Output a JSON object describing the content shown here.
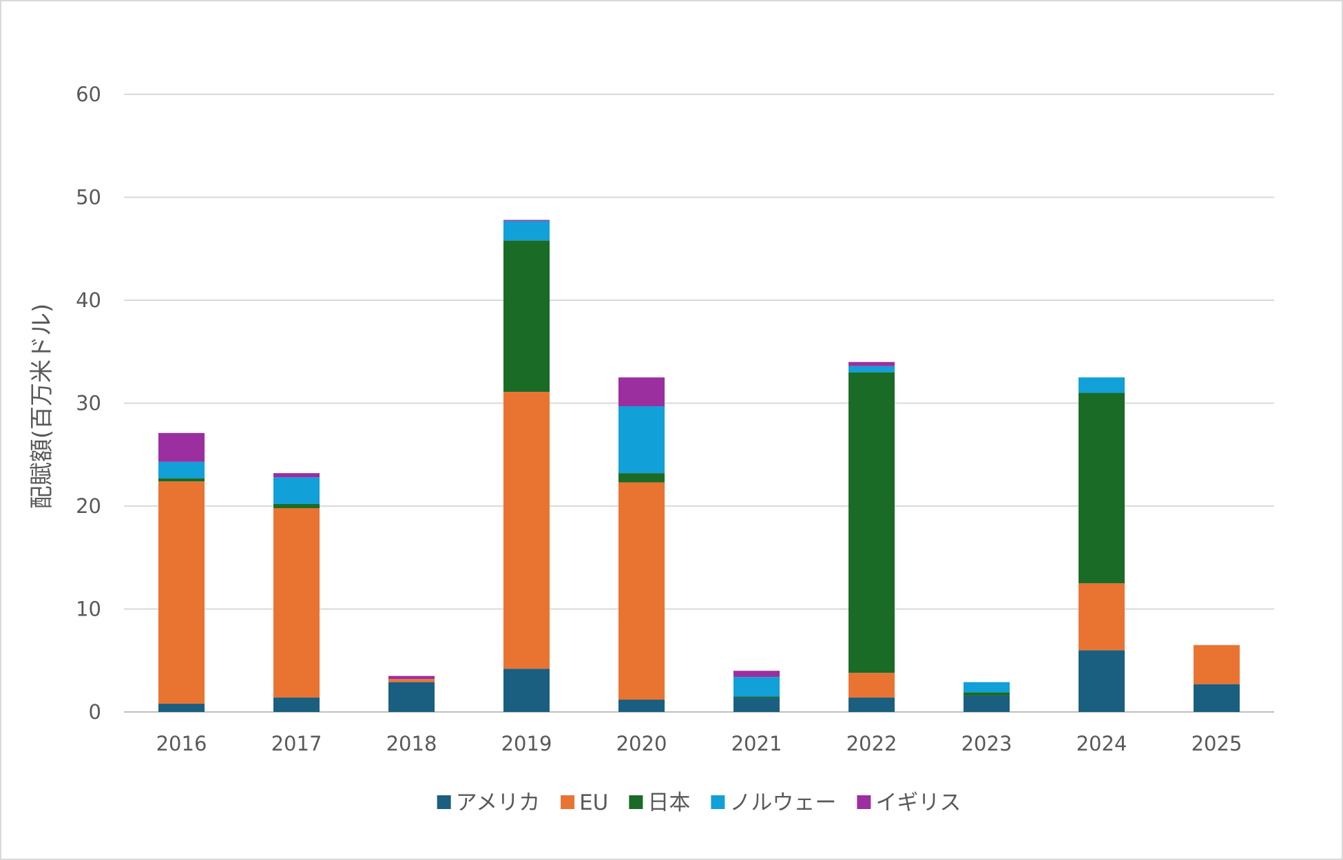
{
  "chart_data": {
    "type": "bar",
    "stacked": true,
    "title": "",
    "xlabel": "",
    "ylabel": "配賦額(百万米ドル)",
    "ylim": [
      0,
      60
    ],
    "yticks": [
      "0",
      "10",
      "20",
      "30",
      "40",
      "50",
      "60"
    ],
    "grid": true,
    "legend_position": "bottom",
    "categories": [
      "2016",
      "2017",
      "2018",
      "2019",
      "2020",
      "2021",
      "2022",
      "2023",
      "2024",
      "2025"
    ],
    "series": [
      {
        "name": "アメリカ",
        "color": "#1a5e80",
        "values": [
          0.8,
          1.4,
          2.9,
          4.2,
          1.2,
          1.4,
          1.4,
          1.6,
          6.0,
          2.7
        ]
      },
      {
        "name": "EU",
        "color": "#e97432",
        "values": [
          21.6,
          18.4,
          0.3,
          26.9,
          21.1,
          0.0,
          2.4,
          0.0,
          6.5,
          3.8
        ]
      },
      {
        "name": "日本",
        "color": "#1a6b25",
        "values": [
          0.3,
          0.4,
          0.0,
          14.7,
          0.9,
          0.1,
          29.2,
          0.3,
          18.5,
          0.0
        ]
      },
      {
        "name": "ノルウェー",
        "color": "#12a0d8",
        "values": [
          1.6,
          2.6,
          0.0,
          1.9,
          6.5,
          1.9,
          0.6,
          1.0,
          1.5,
          0.0
        ]
      },
      {
        "name": "イギリス",
        "color": "#9b2fa0",
        "values": [
          2.8,
          0.4,
          0.3,
          0.1,
          2.8,
          0.6,
          0.4,
          0.0,
          0.0,
          0.0
        ]
      }
    ]
  }
}
